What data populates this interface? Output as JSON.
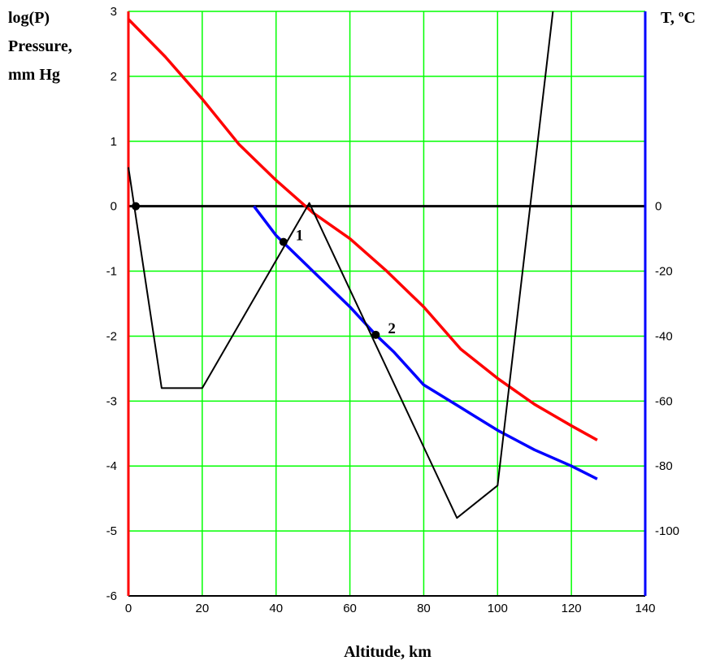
{
  "chart_data": {
    "type": "line",
    "xlabel": "Altitude, km",
    "ylabel_left": [
      "log(P)",
      "Pressure,",
      "mm Hg"
    ],
    "ylabel_right": "T, ºC",
    "xlim": [
      0,
      140
    ],
    "ylim_left": [
      -6,
      3
    ],
    "ylim_right": [
      -120,
      60
    ],
    "x_ticks": [
      0,
      20,
      40,
      60,
      80,
      100,
      120,
      140
    ],
    "y_left_ticks": [
      3,
      2,
      1,
      0,
      -1,
      -2,
      -3,
      -4,
      -5,
      -6
    ],
    "y_right_ticks": [
      0,
      -20,
      -40,
      -60,
      -80,
      -100
    ],
    "grid": true,
    "colors": {
      "pressure": "#ff0000",
      "blue_curve": "#0000ff",
      "temperature": "#000000",
      "grid": "#00ff00",
      "left_axis": "#ff0000",
      "right_axis": "#0000ff",
      "zero_line": "#000000"
    },
    "series": [
      {
        "axis": "left",
        "color": "#ff0000",
        "x": [
          0,
          10,
          20,
          30,
          40,
          50,
          60,
          70,
          80,
          90,
          100,
          110,
          120,
          127
        ],
        "y": [
          2.88,
          2.3,
          1.65,
          0.95,
          0.4,
          -0.1,
          -0.5,
          -1.0,
          -1.55,
          -2.2,
          -2.65,
          -3.05,
          -3.38,
          -3.6
        ]
      },
      {
        "axis": "left",
        "color": "#0000ff",
        "x": [
          34,
          40,
          50,
          60,
          67,
          72,
          80,
          90,
          100,
          110,
          120,
          127
        ],
        "y": [
          0,
          -0.45,
          -1.0,
          -1.55,
          -1.98,
          -2.25,
          -2.75,
          -3.1,
          -3.45,
          -3.75,
          -4.0,
          -4.2
        ]
      },
      {
        "axis": "right",
        "color": "#000000",
        "x": [
          0,
          9,
          20,
          49,
          89,
          100,
          115
        ],
        "y": [
          12,
          -56,
          -56,
          1,
          -96,
          -86,
          60
        ]
      }
    ],
    "points": [
      {
        "label": "",
        "x": 2,
        "y": 0
      },
      {
        "label": "1",
        "x": 42,
        "y": -0.55
      },
      {
        "label": "2",
        "x": 67,
        "y": -1.98
      }
    ]
  }
}
